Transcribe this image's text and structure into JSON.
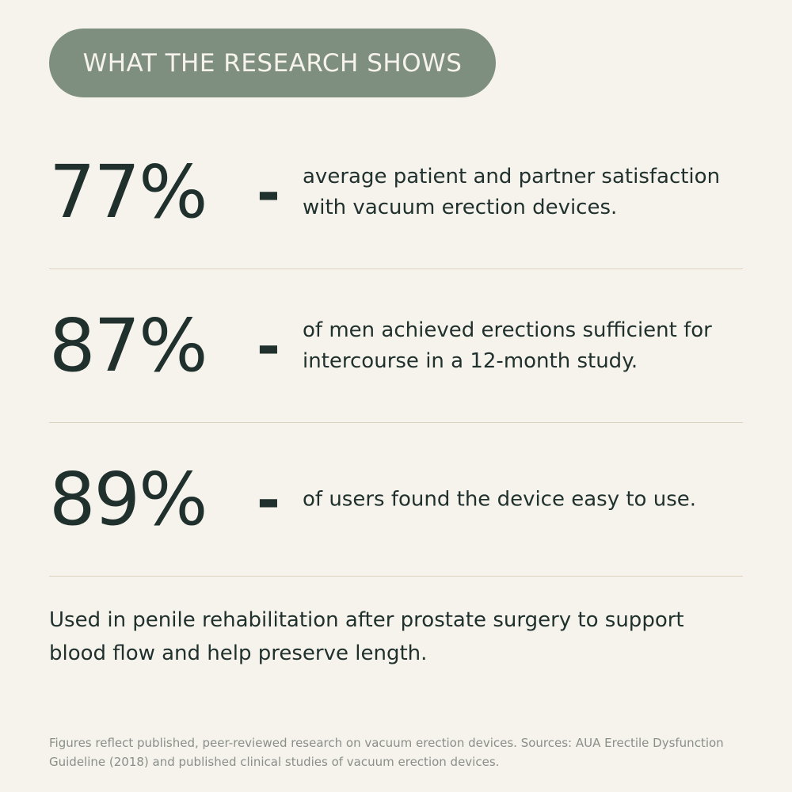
{
  "header": {
    "label": "WHAT THE RESEARCH SHOWS",
    "background_color": "#7f8f7f"
  },
  "stats": [
    {
      "value": "77%",
      "separator": "-",
      "description": "average patient and partner satisfaction with vacuum erection devices."
    },
    {
      "value": "87%",
      "separator": "-",
      "description": "of men achieved erections sufficient for intercourse in a 12-month study."
    },
    {
      "value": "89%",
      "separator": "-",
      "description": "of users found the device easy to use."
    }
  ],
  "summary": "Used in penile rehabilitation after prostate surgery to support blood flow and help preserve length.",
  "footnote": "Figures reflect published, peer-reviewed research on vacuum erection devices. Sources: AUA Erectile Dysfunction Guideline (2018) and published clinical studies of vacuum erection devices.",
  "colors": {
    "background": "#f6f2ec",
    "text": "#1f302d",
    "divider": "#ddd2c2",
    "footnote": "#8a8f8a"
  }
}
